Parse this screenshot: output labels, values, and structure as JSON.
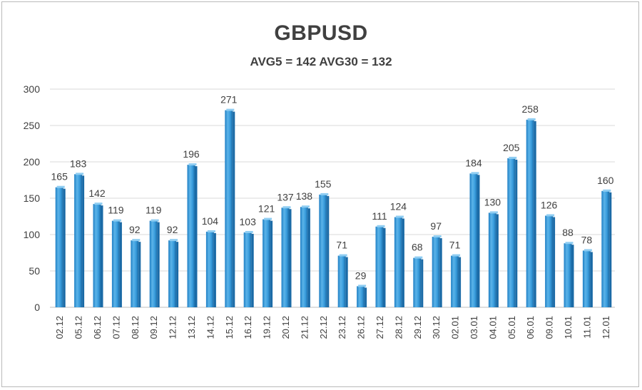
{
  "chart_data": {
    "type": "bar",
    "title": "GBPUSD",
    "subtitle": "AVG5 = 142 AVG30 = 132",
    "xlabel": "",
    "ylabel": "",
    "ylim": [
      0,
      300
    ],
    "yticks": [
      0,
      50,
      100,
      150,
      200,
      250,
      300
    ],
    "grid": true,
    "legend": "none",
    "categories": [
      "02.12",
      "05.12",
      "06.12",
      "07.12",
      "08.12",
      "09.12",
      "12.12",
      "13.12",
      "14.12",
      "15.12",
      "16.12",
      "19.12",
      "20.12",
      "21.12",
      "22.12",
      "23.12",
      "26.12",
      "27.12",
      "28.12",
      "29.12",
      "30.12",
      "02.01",
      "03.01",
      "04.01",
      "05.01",
      "06.01",
      "09.01",
      "10.01",
      "11.01",
      "12.01"
    ],
    "values": [
      165,
      183,
      142,
      119,
      92,
      119,
      92,
      196,
      104,
      271,
      103,
      121,
      137,
      138,
      155,
      71,
      29,
      111,
      124,
      68,
      97,
      71,
      184,
      130,
      205,
      258,
      126,
      88,
      78,
      160
    ],
    "colors": {
      "bar_light": "#5bb3e8",
      "bar_mid": "#2a8fd4",
      "bar_dark": "#1a6aa6",
      "grid": "#d9d9d9",
      "axis": "#bfbfbf"
    }
  }
}
